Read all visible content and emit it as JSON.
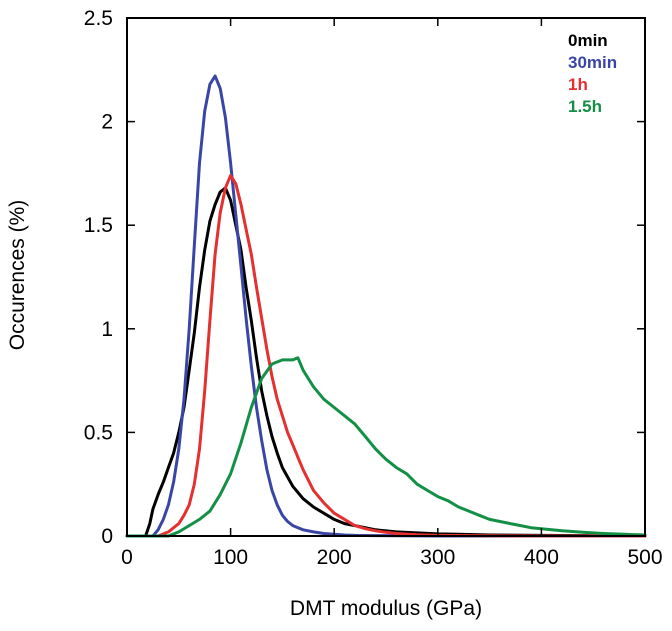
{
  "chart_data": {
    "type": "line",
    "xlabel": "DMT modulus (GPa)",
    "ylabel": "Occurences (%)",
    "xlim": [
      0,
      500
    ],
    "ylim": [
      0,
      2.5
    ],
    "xticks": [
      0,
      100,
      200,
      300,
      400,
      500
    ],
    "yticks": [
      0,
      0.5,
      1,
      1.5,
      2,
      2.5
    ],
    "xtick_labels": [
      "0",
      "100",
      "200",
      "300",
      "400",
      "500"
    ],
    "ytick_labels": [
      "0",
      "0.5",
      "1",
      "1.5",
      "2",
      "2.5"
    ],
    "grid": false,
    "legend_position": "top-right",
    "series": [
      {
        "name": "0min",
        "color": "#000000",
        "x": [
          0,
          18,
          22,
          25,
          30,
          35,
          40,
          45,
          50,
          55,
          60,
          65,
          70,
          75,
          80,
          85,
          90,
          95,
          100,
          105,
          110,
          115,
          120,
          125,
          130,
          135,
          140,
          145,
          150,
          160,
          170,
          180,
          190,
          200,
          210,
          220,
          240,
          260,
          280,
          300,
          320,
          350,
          400,
          450,
          500
        ],
        "y": [
          0,
          0,
          0.06,
          0.13,
          0.2,
          0.26,
          0.33,
          0.4,
          0.5,
          0.62,
          0.8,
          0.98,
          1.2,
          1.38,
          1.52,
          1.6,
          1.66,
          1.68,
          1.62,
          1.5,
          1.38,
          1.2,
          1.04,
          0.86,
          0.7,
          0.58,
          0.48,
          0.4,
          0.33,
          0.24,
          0.18,
          0.14,
          0.11,
          0.08,
          0.06,
          0.05,
          0.03,
          0.02,
          0.015,
          0.01,
          0.008,
          0.005,
          0.003,
          0.002,
          0.001
        ]
      },
      {
        "name": "30min",
        "color": "#3a46a6",
        "x": [
          0,
          25,
          30,
          35,
          40,
          45,
          50,
          55,
          60,
          65,
          70,
          75,
          80,
          85,
          90,
          95,
          100,
          105,
          110,
          115,
          120,
          125,
          130,
          135,
          140,
          145,
          150,
          155,
          160,
          170,
          180,
          190,
          200,
          210,
          220,
          240,
          260,
          300,
          400,
          500
        ],
        "y": [
          0,
          0,
          0.03,
          0.08,
          0.15,
          0.26,
          0.42,
          0.66,
          1.0,
          1.4,
          1.8,
          2.05,
          2.18,
          2.22,
          2.16,
          2.02,
          1.8,
          1.55,
          1.3,
          1.05,
          0.82,
          0.62,
          0.46,
          0.32,
          0.22,
          0.15,
          0.1,
          0.07,
          0.05,
          0.03,
          0.02,
          0.012,
          0.008,
          0.005,
          0.003,
          0.002,
          0.001,
          0,
          0,
          0
        ]
      },
      {
        "name": "1h",
        "color": "#e53030",
        "x": [
          0,
          30,
          40,
          50,
          55,
          60,
          65,
          70,
          75,
          80,
          85,
          90,
          95,
          100,
          105,
          110,
          115,
          120,
          125,
          130,
          135,
          140,
          145,
          150,
          155,
          160,
          165,
          170,
          175,
          180,
          190,
          200,
          210,
          220,
          230,
          240,
          250,
          260,
          280,
          300,
          350,
          400,
          500
        ],
        "y": [
          0,
          0,
          0.02,
          0.06,
          0.1,
          0.15,
          0.25,
          0.42,
          0.7,
          1.04,
          1.36,
          1.56,
          1.68,
          1.74,
          1.7,
          1.6,
          1.48,
          1.36,
          1.2,
          1.05,
          0.9,
          0.77,
          0.66,
          0.58,
          0.5,
          0.44,
          0.38,
          0.32,
          0.27,
          0.22,
          0.16,
          0.11,
          0.08,
          0.05,
          0.035,
          0.025,
          0.018,
          0.012,
          0.006,
          0.003,
          0.001,
          0,
          0
        ]
      },
      {
        "name": "1.5h",
        "color": "#139046",
        "x": [
          0,
          40,
          50,
          60,
          70,
          80,
          90,
          100,
          110,
          120,
          130,
          140,
          150,
          160,
          165,
          170,
          180,
          190,
          200,
          210,
          220,
          230,
          240,
          250,
          260,
          270,
          280,
          290,
          300,
          310,
          320,
          330,
          340,
          350,
          360,
          370,
          380,
          390,
          400,
          420,
          440,
          460,
          480,
          500
        ],
        "y": [
          0,
          0,
          0.02,
          0.05,
          0.08,
          0.12,
          0.2,
          0.3,
          0.45,
          0.62,
          0.76,
          0.83,
          0.85,
          0.85,
          0.86,
          0.8,
          0.72,
          0.66,
          0.62,
          0.58,
          0.54,
          0.48,
          0.42,
          0.37,
          0.33,
          0.3,
          0.25,
          0.22,
          0.19,
          0.17,
          0.14,
          0.12,
          0.1,
          0.08,
          0.07,
          0.06,
          0.05,
          0.04,
          0.035,
          0.025,
          0.018,
          0.012,
          0.008,
          0.005
        ]
      }
    ]
  }
}
